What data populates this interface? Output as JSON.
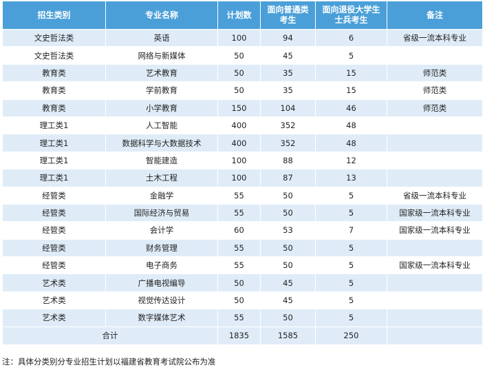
{
  "table": {
    "headers": [
      "招生类别",
      "专业名称",
      "计划数",
      "面向普通类\n考生",
      "面向退役大学生\n士兵考生",
      "备注"
    ],
    "rows": [
      [
        "文史哲法类",
        "英语",
        "100",
        "94",
        "6",
        "省级一流本科专业"
      ],
      [
        "文史哲法类",
        "网络与新媒体",
        "50",
        "45",
        "5",
        ""
      ],
      [
        "教育类",
        "艺术教育",
        "50",
        "35",
        "15",
        "师范类"
      ],
      [
        "教育类",
        "学前教育",
        "50",
        "35",
        "15",
        "师范类"
      ],
      [
        "教育类",
        "小学教育",
        "150",
        "104",
        "46",
        "师范类"
      ],
      [
        "理工类1",
        "人工智能",
        "400",
        "352",
        "48",
        ""
      ],
      [
        "理工类1",
        "数据科学与大数据技术",
        "400",
        "352",
        "48",
        ""
      ],
      [
        "理工类1",
        "智能建造",
        "100",
        "88",
        "12",
        ""
      ],
      [
        "理工类1",
        "土木工程",
        "100",
        "87",
        "13",
        ""
      ],
      [
        "经管类",
        "金融学",
        "55",
        "50",
        "5",
        "省级一流本科专业"
      ],
      [
        "经管类",
        "国际经济与贸易",
        "55",
        "50",
        "5",
        "国家级一流本科专业"
      ],
      [
        "经管类",
        "会计学",
        "60",
        "53",
        "7",
        "国家级一流本科专业"
      ],
      [
        "经管类",
        "财务管理",
        "55",
        "50",
        "5",
        ""
      ],
      [
        "经管类",
        "电子商务",
        "55",
        "50",
        "5",
        "国家级一流本科专业"
      ],
      [
        "艺术类",
        "广播电视编导",
        "50",
        "45",
        "5",
        ""
      ],
      [
        "艺术类",
        "视觉传达设计",
        "50",
        "45",
        "5",
        ""
      ],
      [
        "艺术类",
        "数字媒体艺术",
        "55",
        "50",
        "5",
        ""
      ]
    ],
    "total": {
      "label": "合计",
      "plan": "1835",
      "general": "1585",
      "veteran": "250",
      "note": ""
    }
  },
  "footnote": "注：具体分类别分专业招生计划以福建省教育考试院公布为准",
  "colors": {
    "header_bg": "#4a9fd8",
    "header_text": "#ffffff",
    "stripe_bg": "#dfecf8"
  }
}
